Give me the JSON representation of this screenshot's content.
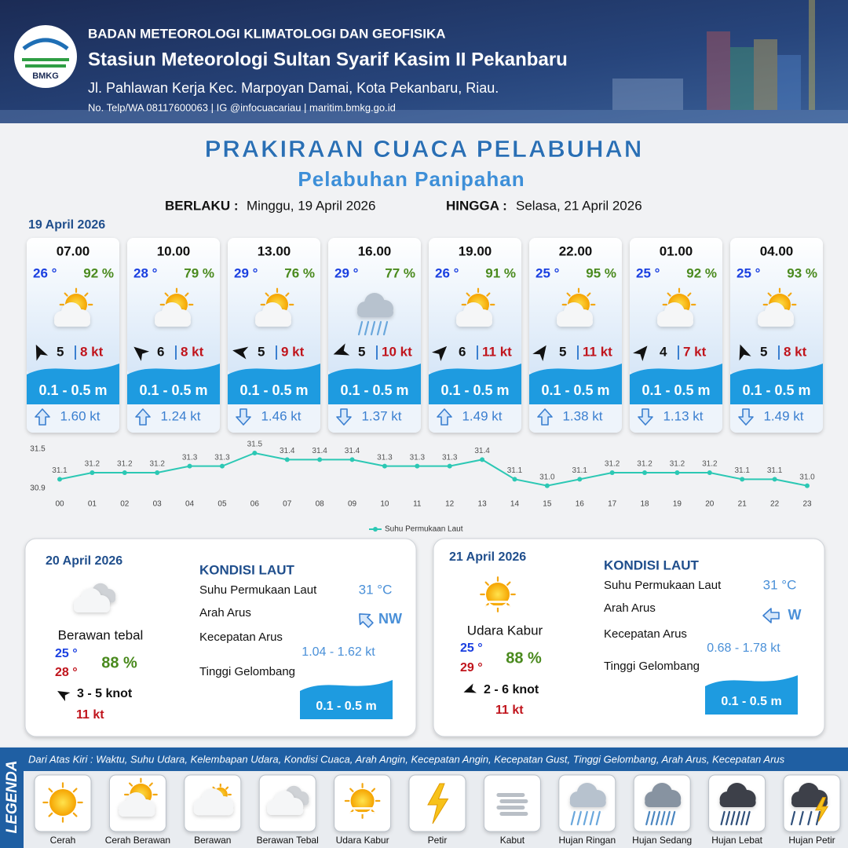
{
  "header": {
    "logo": "BMKG",
    "organization": "BADAN METEOROLOGI KLIMATOLOGI DAN GEOFISIKA",
    "station": "Stasiun Meteorologi Sultan Syarif Kasim II Pekanbaru",
    "address": "Jl. Pahlawan Kerja Kec. Marpoyan Damai, Kota Pekanbaru, Riau.",
    "contact": "No. Telp/WA 08117600063 | IG @infocuacariau | maritim.bmkg.go.id"
  },
  "title": "PRAKIRAAN CUACA PELABUHAN",
  "subtitle": "Pelabuhan Panipahan",
  "validity": {
    "from_label": "BERLAKU :",
    "from": "Minggu, 19 April 2026",
    "to_label": "HINGGA :",
    "to": "Selasa, 21 April 2026"
  },
  "day1": {
    "date": "19 April 2026",
    "forecasts": [
      {
        "time": "07.00",
        "temp": "26 °",
        "humidity": "92 %",
        "icon": 1,
        "wind_deg": -25,
        "wind": "5",
        "gust": "8 kt",
        "wave": "0.1 - 0.5 m",
        "current_up": true,
        "current": "1.60 kt"
      },
      {
        "time": "10.00",
        "temp": "28 °",
        "humidity": "79 %",
        "icon": 1,
        "wind_deg": -50,
        "wind": "6",
        "gust": "8 kt",
        "wave": "0.1 - 0.5 m",
        "current_up": true,
        "current": "1.24 kt"
      },
      {
        "time": "13.00",
        "temp": "29 °",
        "humidity": "76 %",
        "icon": 1,
        "wind_deg": -80,
        "wind": "5",
        "gust": "9 kt",
        "wave": "0.1 - 0.5 m",
        "current_up": false,
        "current": "1.46 kt"
      },
      {
        "time": "16.00",
        "temp": "29 °",
        "humidity": "77 %",
        "icon": 7,
        "wind_deg": -110,
        "wind": "5",
        "gust": "10 kt",
        "wave": "0.1 - 0.5 m",
        "current_up": false,
        "current": "1.37 kt"
      },
      {
        "time": "19.00",
        "temp": "26 °",
        "humidity": "91 %",
        "icon": 1,
        "wind_deg": 45,
        "wind": "6",
        "gust": "11 kt",
        "wave": "0.1 - 0.5 m",
        "current_up": true,
        "current": "1.49 kt"
      },
      {
        "time": "22.00",
        "temp": "25 °",
        "humidity": "95 %",
        "icon": 1,
        "wind_deg": 35,
        "wind": "5",
        "gust": "11 kt",
        "wave": "0.1 - 0.5 m",
        "current_up": true,
        "current": "1.38 kt"
      },
      {
        "time": "01.00",
        "temp": "25 °",
        "humidity": "92 %",
        "icon": 1,
        "wind_deg": 40,
        "wind": "4",
        "gust": "7 kt",
        "wave": "0.1 - 0.5 m",
        "current_up": false,
        "current": "1.13 kt"
      },
      {
        "time": "04.00",
        "temp": "25 °",
        "humidity": "93 %",
        "icon": 1,
        "wind_deg": -20,
        "wind": "5",
        "gust": "8 kt",
        "wave": "0.1 - 0.5 m",
        "current_up": false,
        "current": "1.49 kt"
      }
    ]
  },
  "chart_data": {
    "type": "line",
    "categories": [
      "00",
      "01",
      "02",
      "03",
      "04",
      "05",
      "06",
      "07",
      "08",
      "09",
      "10",
      "11",
      "12",
      "13",
      "14",
      "15",
      "16",
      "17",
      "18",
      "19",
      "20",
      "21",
      "22",
      "23"
    ],
    "series": [
      {
        "name": "Suhu Permukaan Laut",
        "color": "#2cc8b4",
        "values": [
          31.1,
          31.2,
          31.2,
          31.2,
          31.3,
          31.3,
          31.5,
          31.4,
          31.4,
          31.4,
          31.3,
          31.3,
          31.3,
          31.4,
          31.1,
          31.0,
          31.1,
          31.2,
          31.2,
          31.2,
          31.2,
          31.1,
          31.1,
          31.0
        ],
        "value_labels": [
          "31.1",
          "31.2",
          "31.2",
          "31.2",
          "31.3",
          "31.3",
          "31.5",
          "31.4",
          "31.4",
          "31.4",
          "31.3",
          "31.3",
          "31.3",
          "31.4",
          "31.1",
          "31.0",
          "31.1",
          "31.2",
          "31.2",
          "31.2",
          "31.2",
          "31.1",
          "31.1",
          "31.0"
        ]
      }
    ],
    "ylim": [
      30.9,
      31.5
    ],
    "yticks": [
      30.9,
      31.5
    ],
    "grid": false,
    "legend": "bottom"
  },
  "days": [
    {
      "date": "20 April 2026",
      "icon": 3,
      "weather": "Berawan tebal",
      "temp_min": "25 °",
      "temp_max": "28 °",
      "humidity": "88 %",
      "wind_deg": -60,
      "wind": "3  - 5 knot",
      "gust": "11 kt",
      "sea_title": "KONDISI LAUT",
      "sst_label": "Suhu Permukaan Laut",
      "sst": "31 °C",
      "current_dir_label": "Arah Arus",
      "current_dir": "NW",
      "current_speed_label": "Kecepatan Arus",
      "current_speed": "1.04  - 1.62 kt",
      "wave_label": "Tinggi Gelombang",
      "wave": "0.1 - 0.5 m"
    },
    {
      "date": "21 April 2026",
      "icon": 4,
      "weather": "Udara Kabur",
      "temp_min": "25 °",
      "temp_max": "29 °",
      "humidity": "88 %",
      "wind_deg": -110,
      "wind": "2  - 6 knot",
      "gust": "11 kt",
      "sea_title": "KONDISI LAUT",
      "sst_label": "Suhu Permukaan Laut",
      "sst": "31 °C",
      "current_dir_label": "Arah Arus",
      "current_dir": "W",
      "current_speed_label": "Kecepatan Arus",
      "current_speed": "0.68  - 1.78 kt",
      "wave_label": "Tinggi Gelombang",
      "wave": "0.1 - 0.5 m"
    }
  ],
  "legend": {
    "title": "LEGENDA",
    "description": "Dari Atas Kiri : Waktu, Suhu Udara, Kelembapan Udara, Kondisi Cuaca, Arah Angin, Kecepatan Angin, Kecepatan Gust, Tinggi Gelombang, Arah Arus, Kecepatan Arus",
    "items": [
      "Cerah",
      "Cerah Berawan",
      "Berawan",
      "Berawan Tebal",
      "Udara Kabur",
      "Petir",
      "Kabut",
      "Hujan Ringan",
      "Hujan Sedang",
      "Hujan Lebat",
      "Hujan Petir"
    ]
  }
}
